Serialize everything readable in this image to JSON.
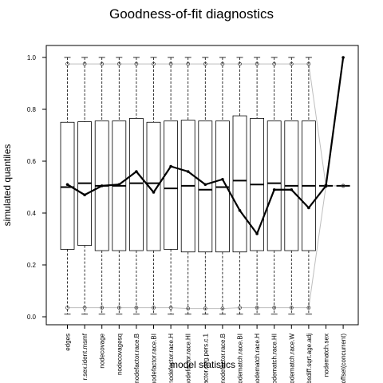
{
  "chart_data": {
    "type": "boxplot",
    "title": "Goodness-of-fit diagnostics",
    "xlabel": "model statistics",
    "ylabel": "simulated quantiles",
    "ylim": [
      0,
      1
    ],
    "yticks": [
      "0.0",
      "0.2",
      "0.4",
      "0.6",
      "0.8",
      "1.0"
    ],
    "categories": [
      "edges",
      "r.sex.ident.msmf",
      "nodecovage",
      "nodecovagesq",
      "nodefactor.race.B",
      "nodefactor.race.BI",
      "nodefactor.race.H",
      "nodefactor.race.HI",
      "nodefactor.deg.pers.c.1",
      "nodefactor.race.B",
      "nodematch.race.BI",
      "nodematch.race.H",
      "nodematch.race.HI",
      "nodematch.race.W",
      "absdiff.sqrt.age.adj",
      "nodematch.sex",
      "offset(concurrent)"
    ],
    "boxes": [
      {
        "q1": 0.26,
        "median": 0.5,
        "q3": 0.75
      },
      {
        "q1": 0.275,
        "median": 0.515,
        "q3": 0.752
      },
      {
        "q1": 0.255,
        "median": 0.505,
        "q3": 0.755
      },
      {
        "q1": 0.255,
        "median": 0.505,
        "q3": 0.755
      },
      {
        "q1": 0.255,
        "median": 0.515,
        "q3": 0.765
      },
      {
        "q1": 0.255,
        "median": 0.515,
        "q3": 0.75
      },
      {
        "q1": 0.26,
        "median": 0.495,
        "q3": 0.755
      },
      {
        "q1": 0.25,
        "median": 0.505,
        "q3": 0.758
      },
      {
        "q1": 0.25,
        "median": 0.49,
        "q3": 0.755
      },
      {
        "q1": 0.25,
        "median": 0.5,
        "q3": 0.755
      },
      {
        "q1": 0.25,
        "median": 0.525,
        "q3": 0.775
      },
      {
        "q1": 0.255,
        "median": 0.51,
        "q3": 0.765
      },
      {
        "q1": 0.255,
        "median": 0.515,
        "q3": 0.755
      },
      {
        "q1": 0.255,
        "median": 0.505,
        "q3": 0.755
      },
      {
        "q1": 0.255,
        "median": 0.505,
        "q3": 0.755
      },
      {
        "q1": 0.5,
        "median": 0.505,
        "q3": 0.505
      },
      {
        "q1": 0.505,
        "median": 0.505,
        "q3": 0.505
      }
    ],
    "whisker_low": [
      0.01,
      0.01,
      0.01,
      0.01,
      0.01,
      0.01,
      0.01,
      0.01,
      0.01,
      0.01,
      0.01,
      0.01,
      0.01,
      0.01,
      0.01,
      0.5,
      0.505
    ],
    "whisker_high": [
      1.0,
      1.0,
      1.0,
      1.0,
      1.0,
      1.0,
      1.0,
      1.0,
      1.0,
      1.0,
      1.0,
      1.0,
      1.0,
      1.0,
      1.0,
      0.505,
      0.505
    ],
    "ci_lower": [
      0.035,
      0.035,
      0.035,
      0.035,
      0.035,
      0.035,
      0.035,
      0.032,
      0.032,
      0.032,
      0.035,
      0.035,
      0.035,
      0.035,
      0.035,
      0.505,
      0.505
    ],
    "ci_upper": [
      0.975,
      0.975,
      0.975,
      0.975,
      0.975,
      0.975,
      0.975,
      0.975,
      0.975,
      0.975,
      0.975,
      0.975,
      0.975,
      0.975,
      0.975,
      0.505,
      0.505
    ],
    "observed": [
      0.51,
      0.47,
      0.505,
      0.51,
      0.56,
      0.48,
      0.58,
      0.56,
      0.51,
      0.53,
      0.41,
      0.32,
      0.49,
      0.49,
      0.42,
      0.505,
      1.0
    ],
    "colors": {
      "box": "#000000",
      "observed": "#000000",
      "ci": "#bebebe"
    }
  }
}
